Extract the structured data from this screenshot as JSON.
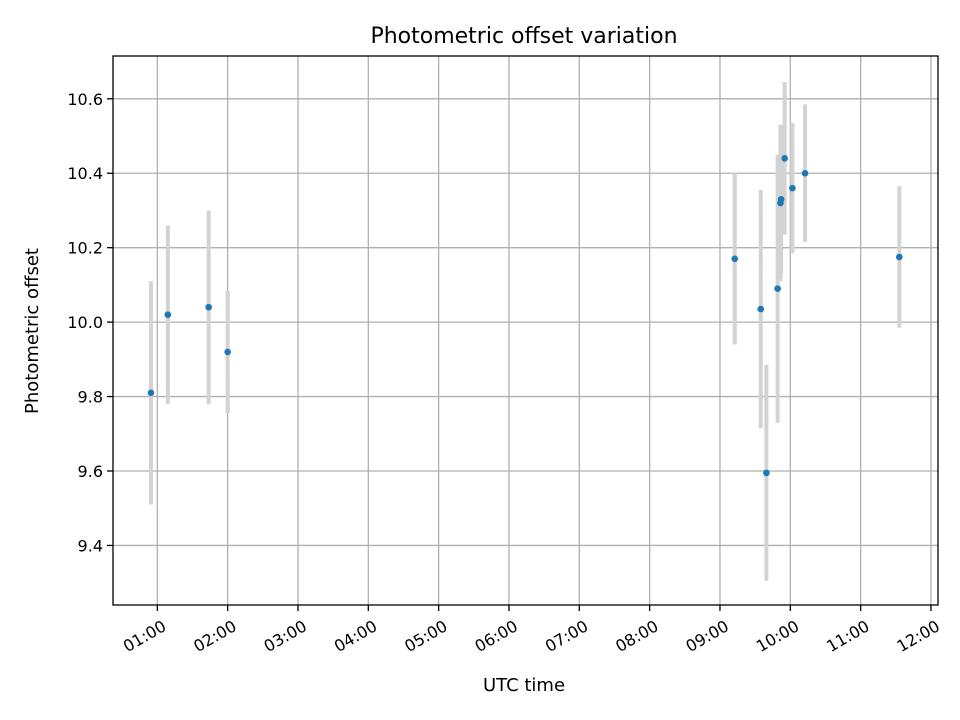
{
  "chart_data": {
    "type": "scatter",
    "title": "Photometric offset variation",
    "xlabel": "UTC time",
    "ylabel": "Photometric offset",
    "x_unit": "hours UTC",
    "xlim": [
      0.37,
      12.1
    ],
    "ylim": [
      9.24,
      10.715
    ],
    "x_ticks": [
      {
        "value": 1,
        "label": "01:00"
      },
      {
        "value": 2,
        "label": "02:00"
      },
      {
        "value": 3,
        "label": "03:00"
      },
      {
        "value": 4,
        "label": "04:00"
      },
      {
        "value": 5,
        "label": "05:00"
      },
      {
        "value": 6,
        "label": "06:00"
      },
      {
        "value": 7,
        "label": "07:00"
      },
      {
        "value": 8,
        "label": "08:00"
      },
      {
        "value": 9,
        "label": "09:00"
      },
      {
        "value": 10,
        "label": "10:00"
      },
      {
        "value": 11,
        "label": "11:00"
      },
      {
        "value": 12,
        "label": "12:00"
      }
    ],
    "y_ticks": [
      {
        "value": 9.4,
        "label": "9.4"
      },
      {
        "value": 9.6,
        "label": "9.6"
      },
      {
        "value": 9.8,
        "label": "9.8"
      },
      {
        "value": 10.0,
        "label": "10.0"
      },
      {
        "value": 10.2,
        "label": "10.2"
      },
      {
        "value": 10.4,
        "label": "10.4"
      },
      {
        "value": 10.6,
        "label": "10.6"
      }
    ],
    "grid": true,
    "marker_color": "#1f77b4",
    "errorbar_color": "#d3d3d3",
    "points": [
      {
        "x": 0.91,
        "y": 9.81,
        "err": 0.3
      },
      {
        "x": 1.15,
        "y": 10.02,
        "err": 0.24
      },
      {
        "x": 1.73,
        "y": 10.04,
        "err": 0.26
      },
      {
        "x": 2.0,
        "y": 9.92,
        "err": 0.165
      },
      {
        "x": 9.21,
        "y": 10.17,
        "err": 0.23
      },
      {
        "x": 9.58,
        "y": 10.035,
        "err": 0.32
      },
      {
        "x": 9.66,
        "y": 9.595,
        "err": 0.29
      },
      {
        "x": 9.82,
        "y": 10.09,
        "err": 0.36
      },
      {
        "x": 9.86,
        "y": 10.32,
        "err": 0.21
      },
      {
        "x": 9.87,
        "y": 10.33,
        "err": 0.2
      },
      {
        "x": 9.92,
        "y": 10.44,
        "err": 0.205
      },
      {
        "x": 10.03,
        "y": 10.36,
        "err": 0.175
      },
      {
        "x": 10.21,
        "y": 10.4,
        "err": 0.185
      },
      {
        "x": 11.55,
        "y": 10.175,
        "err": 0.19
      }
    ]
  }
}
